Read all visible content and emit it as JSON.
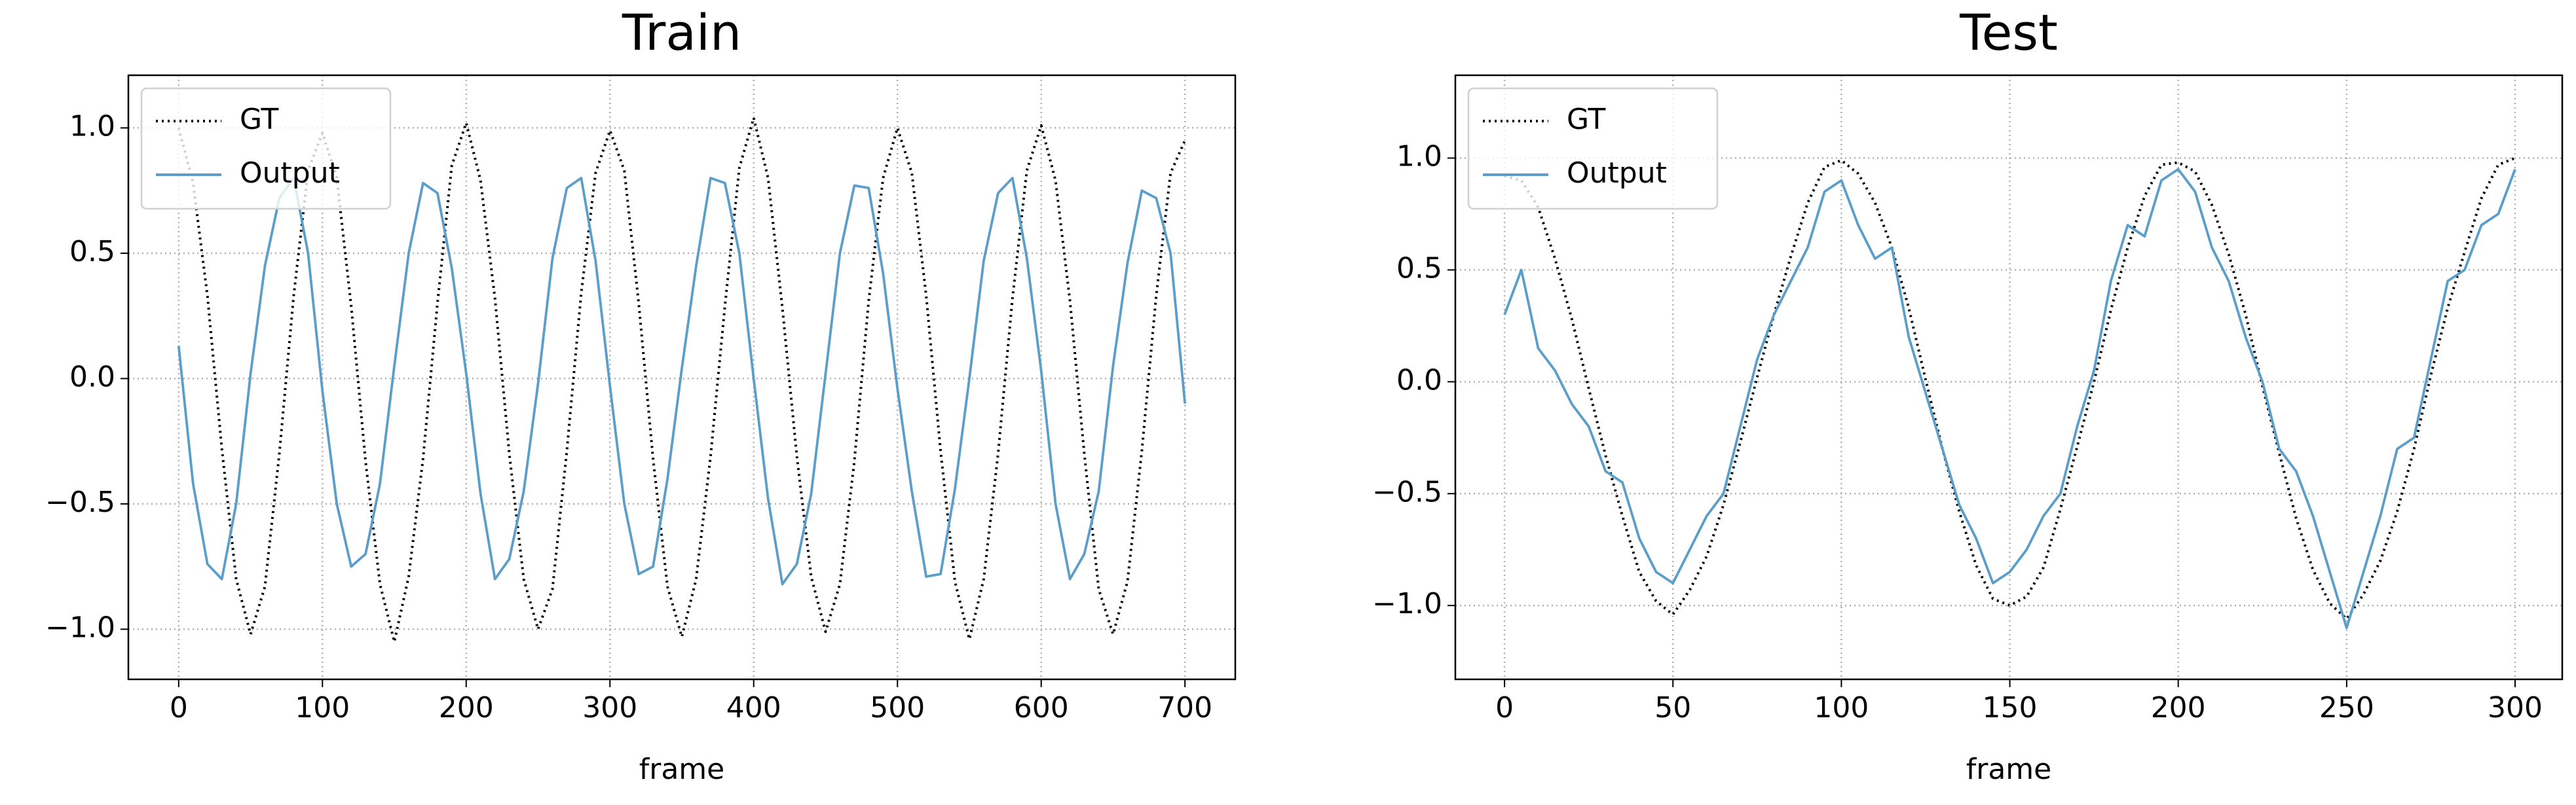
{
  "chart_data": [
    {
      "type": "line",
      "title": "Train",
      "x_label": "frame",
      "x": [
        0,
        10,
        20,
        30,
        40,
        50,
        60,
        70,
        80,
        90,
        100,
        110,
        120,
        130,
        140,
        150,
        160,
        170,
        180,
        190,
        200,
        210,
        220,
        230,
        240,
        250,
        260,
        270,
        280,
        290,
        300,
        310,
        320,
        330,
        340,
        350,
        360,
        370,
        380,
        390,
        400,
        410,
        420,
        430,
        440,
        450,
        460,
        470,
        480,
        490,
        500,
        510,
        520,
        530,
        540,
        550,
        560,
        570,
        580,
        590,
        600,
        610,
        620,
        630,
        640,
        650,
        660,
        670,
        680,
        690,
        700
      ],
      "series": [
        {
          "name": "GT",
          "color": "#000000",
          "linestyle": "dotted",
          "values": [
            1.0,
            0.78,
            0.33,
            -0.28,
            -0.8,
            -1.02,
            -0.83,
            -0.3,
            0.33,
            0.83,
            0.98,
            0.8,
            0.29,
            -0.33,
            -0.82,
            -1.05,
            -0.79,
            -0.32,
            0.3,
            0.85,
            1.02,
            0.79,
            0.32,
            -0.3,
            -0.8,
            -1.0,
            -0.84,
            -0.29,
            0.34,
            0.82,
            0.99,
            0.83,
            0.3,
            -0.32,
            -0.83,
            -1.03,
            -0.8,
            -0.31,
            0.29,
            0.84,
            1.04,
            0.8,
            0.28,
            -0.31,
            -0.79,
            -1.01,
            -0.82,
            -0.33,
            0.31,
            0.8,
            1.0,
            0.82,
            0.33,
            -0.29,
            -0.81,
            -1.04,
            -0.8,
            -0.3,
            0.32,
            0.83,
            1.01,
            0.79,
            0.31,
            -0.3,
            -0.84,
            -1.02,
            -0.81,
            -0.29,
            0.33,
            0.82,
            0.95
          ]
        },
        {
          "name": "Output",
          "color": "#5b9ec9",
          "linestyle": "solid",
          "values": [
            0.13,
            -0.42,
            -0.74,
            -0.8,
            -0.5,
            0.02,
            0.45,
            0.72,
            0.8,
            0.5,
            -0.05,
            -0.5,
            -0.75,
            -0.7,
            -0.42,
            0.05,
            0.5,
            0.78,
            0.74,
            0.44,
            0.02,
            -0.46,
            -0.8,
            -0.72,
            -0.45,
            -0.02,
            0.48,
            0.76,
            0.8,
            0.47,
            -0.03,
            -0.5,
            -0.78,
            -0.75,
            -0.4,
            0.04,
            0.45,
            0.8,
            0.78,
            0.5,
            0.0,
            -0.48,
            -0.82,
            -0.74,
            -0.46,
            0.02,
            0.5,
            0.77,
            0.76,
            0.42,
            -0.04,
            -0.45,
            -0.79,
            -0.78,
            -0.44,
            0.0,
            0.47,
            0.74,
            0.8,
            0.48,
            0.03,
            -0.5,
            -0.8,
            -0.7,
            -0.45,
            0.05,
            0.46,
            0.75,
            0.72,
            0.5,
            -0.1
          ]
        }
      ],
      "xlim": [
        -35,
        735
      ],
      "ylim": [
        -1.2,
        1.21
      ],
      "xticks": [
        0,
        100,
        200,
        300,
        400,
        500,
        600,
        700
      ],
      "yticks": [
        {
          "value": -1.0,
          "label": "−1.0"
        },
        {
          "value": -0.5,
          "label": "−0.5"
        },
        {
          "value": 0.0,
          "label": "0.0"
        },
        {
          "value": 0.5,
          "label": "0.5"
        },
        {
          "value": 1.0,
          "label": "1.0"
        }
      ],
      "grid": true,
      "legend": "upper left"
    },
    {
      "type": "line",
      "title": "Test",
      "x_label": "frame",
      "x": [
        0,
        5,
        10,
        15,
        20,
        25,
        30,
        35,
        40,
        45,
        50,
        55,
        60,
        65,
        70,
        75,
        80,
        85,
        90,
        95,
        100,
        105,
        110,
        115,
        120,
        125,
        130,
        135,
        140,
        145,
        150,
        155,
        160,
        165,
        170,
        175,
        180,
        185,
        190,
        195,
        200,
        205,
        210,
        215,
        220,
        225,
        230,
        235,
        240,
        245,
        250,
        255,
        260,
        265,
        270,
        275,
        280,
        285,
        290,
        295,
        300
      ],
      "series": [
        {
          "name": "GT",
          "color": "#000000",
          "linestyle": "dotted",
          "values": [
            0.92,
            0.9,
            0.78,
            0.55,
            0.28,
            -0.03,
            -0.33,
            -0.6,
            -0.85,
            -0.98,
            -1.04,
            -0.93,
            -0.78,
            -0.55,
            -0.27,
            0.02,
            0.3,
            0.56,
            0.8,
            0.96,
            0.99,
            0.93,
            0.8,
            0.6,
            0.33,
            0.01,
            -0.3,
            -0.58,
            -0.82,
            -0.97,
            -1.0,
            -0.96,
            -0.83,
            -0.57,
            -0.29,
            0.0,
            0.32,
            0.6,
            0.83,
            0.97,
            0.98,
            0.94,
            0.79,
            0.57,
            0.3,
            -0.02,
            -0.32,
            -0.61,
            -0.84,
            -0.99,
            -1.06,
            -0.95,
            -0.8,
            -0.58,
            -0.3,
            0.03,
            0.33,
            0.58,
            0.82,
            0.97,
            1.0
          ]
        },
        {
          "name": "Output",
          "color": "#5b9ec9",
          "linestyle": "solid",
          "values": [
            0.3,
            0.5,
            0.15,
            0.05,
            -0.1,
            -0.2,
            -0.4,
            -0.45,
            -0.7,
            -0.85,
            -0.9,
            -0.75,
            -0.6,
            -0.5,
            -0.2,
            0.1,
            0.3,
            0.45,
            0.6,
            0.85,
            0.9,
            0.7,
            0.55,
            0.6,
            0.2,
            -0.05,
            -0.3,
            -0.55,
            -0.7,
            -0.9,
            -0.85,
            -0.75,
            -0.6,
            -0.5,
            -0.2,
            0.05,
            0.45,
            0.7,
            0.65,
            0.9,
            0.95,
            0.85,
            0.6,
            0.45,
            0.2,
            0.0,
            -0.3,
            -0.4,
            -0.6,
            -0.85,
            -1.1,
            -0.85,
            -0.6,
            -0.3,
            -0.25,
            0.1,
            0.45,
            0.5,
            0.7,
            0.75,
            0.95
          ]
        }
      ],
      "xlim": [
        -14.6,
        314
      ],
      "ylim": [
        -1.33,
        1.37
      ],
      "xticks": [
        0,
        50,
        100,
        150,
        200,
        250,
        300
      ],
      "yticks": [
        {
          "value": -1.0,
          "label": "−1.0"
        },
        {
          "value": -0.5,
          "label": "−0.5"
        },
        {
          "value": 0.0,
          "label": "0.0"
        },
        {
          "value": 0.5,
          "label": "0.5"
        },
        {
          "value": 1.0,
          "label": "1.0"
        }
      ],
      "grid": true,
      "legend": "upper left"
    }
  ]
}
